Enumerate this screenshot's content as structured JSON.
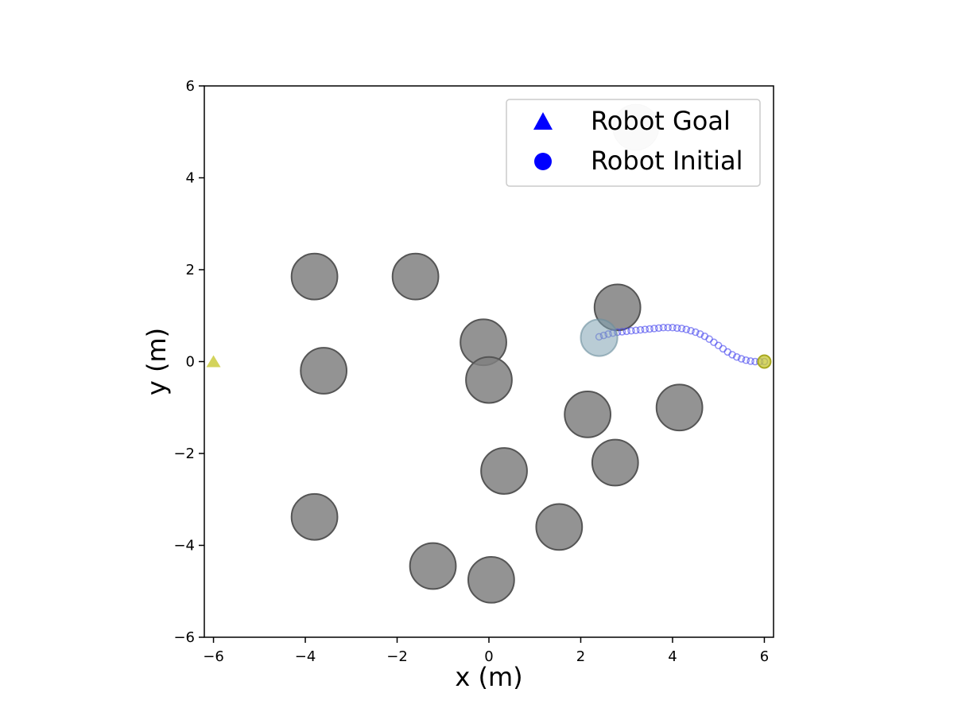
{
  "chart_data": {
    "type": "scatter",
    "xlabel": "x (m)",
    "ylabel": "y (m)",
    "xlim": [
      -6.2,
      6.2
    ],
    "ylim": [
      -6,
      6
    ],
    "xticks": [
      -6,
      -4,
      -2,
      0,
      2,
      4,
      6
    ],
    "yticks": [
      -6,
      -4,
      -2,
      0,
      2,
      4,
      6
    ],
    "grid": false,
    "legend_placement": "top-right",
    "legend": [
      {
        "label": "Robot Goal",
        "marker": "triangle",
        "color": "#0000ff"
      },
      {
        "label": "Robot Initial",
        "marker": "circle",
        "color": "#0000ff"
      }
    ],
    "obstacle_radius": 0.5,
    "obstacle_color": "#808080",
    "obstacles": [
      {
        "x": -3.8,
        "y": 1.85
      },
      {
        "x": -1.6,
        "y": 1.85
      },
      {
        "x": -3.6,
        "y": -0.2
      },
      {
        "x": -0.12,
        "y": 0.42
      },
      {
        "x": 0.0,
        "y": -0.4
      },
      {
        "x": 2.8,
        "y": 1.18
      },
      {
        "x": 2.15,
        "y": -1.15
      },
      {
        "x": 4.15,
        "y": -1.0
      },
      {
        "x": 2.75,
        "y": -2.2
      },
      {
        "x": 0.33,
        "y": -2.38
      },
      {
        "x": 1.53,
        "y": -3.6
      },
      {
        "x": -3.8,
        "y": -3.38
      },
      {
        "x": -1.22,
        "y": -4.45
      },
      {
        "x": 0.05,
        "y": -4.75
      }
    ],
    "faded_obstacle": {
      "x": 3.2,
      "y": 5.1
    },
    "robot_goal": {
      "x": -6.0,
      "y": 0.0,
      "color": "#c8c832"
    },
    "robot_initial": {
      "x": 6.0,
      "y": 0.0,
      "color": "#c8c832"
    },
    "robot_current": {
      "x": 2.4,
      "y": 0.52,
      "color": "#7fa3b3"
    },
    "trajectory_color": "#4444ee",
    "trajectory": [
      {
        "x": 6.0,
        "y": 0.0
      },
      {
        "x": 5.9,
        "y": 0.0
      },
      {
        "x": 5.8,
        "y": 0.0
      },
      {
        "x": 5.7,
        "y": 0.01
      },
      {
        "x": 5.6,
        "y": 0.03
      },
      {
        "x": 5.5,
        "y": 0.06
      },
      {
        "x": 5.4,
        "y": 0.1
      },
      {
        "x": 5.3,
        "y": 0.15
      },
      {
        "x": 5.2,
        "y": 0.21
      },
      {
        "x": 5.1,
        "y": 0.28
      },
      {
        "x": 5.0,
        "y": 0.35
      },
      {
        "x": 4.9,
        "y": 0.42
      },
      {
        "x": 4.8,
        "y": 0.49
      },
      {
        "x": 4.7,
        "y": 0.55
      },
      {
        "x": 4.6,
        "y": 0.6
      },
      {
        "x": 4.5,
        "y": 0.64
      },
      {
        "x": 4.4,
        "y": 0.67
      },
      {
        "x": 4.3,
        "y": 0.7
      },
      {
        "x": 4.2,
        "y": 0.72
      },
      {
        "x": 4.1,
        "y": 0.73
      },
      {
        "x": 4.0,
        "y": 0.74
      },
      {
        "x": 3.9,
        "y": 0.74
      },
      {
        "x": 3.8,
        "y": 0.74
      },
      {
        "x": 3.7,
        "y": 0.73
      },
      {
        "x": 3.6,
        "y": 0.72
      },
      {
        "x": 3.5,
        "y": 0.71
      },
      {
        "x": 3.4,
        "y": 0.7
      },
      {
        "x": 3.3,
        "y": 0.69
      },
      {
        "x": 3.2,
        "y": 0.68
      },
      {
        "x": 3.1,
        "y": 0.67
      },
      {
        "x": 3.0,
        "y": 0.66
      },
      {
        "x": 2.9,
        "y": 0.65
      },
      {
        "x": 2.8,
        "y": 0.64
      },
      {
        "x": 2.7,
        "y": 0.62
      },
      {
        "x": 2.6,
        "y": 0.6
      },
      {
        "x": 2.5,
        "y": 0.57
      },
      {
        "x": 2.4,
        "y": 0.54
      }
    ]
  }
}
